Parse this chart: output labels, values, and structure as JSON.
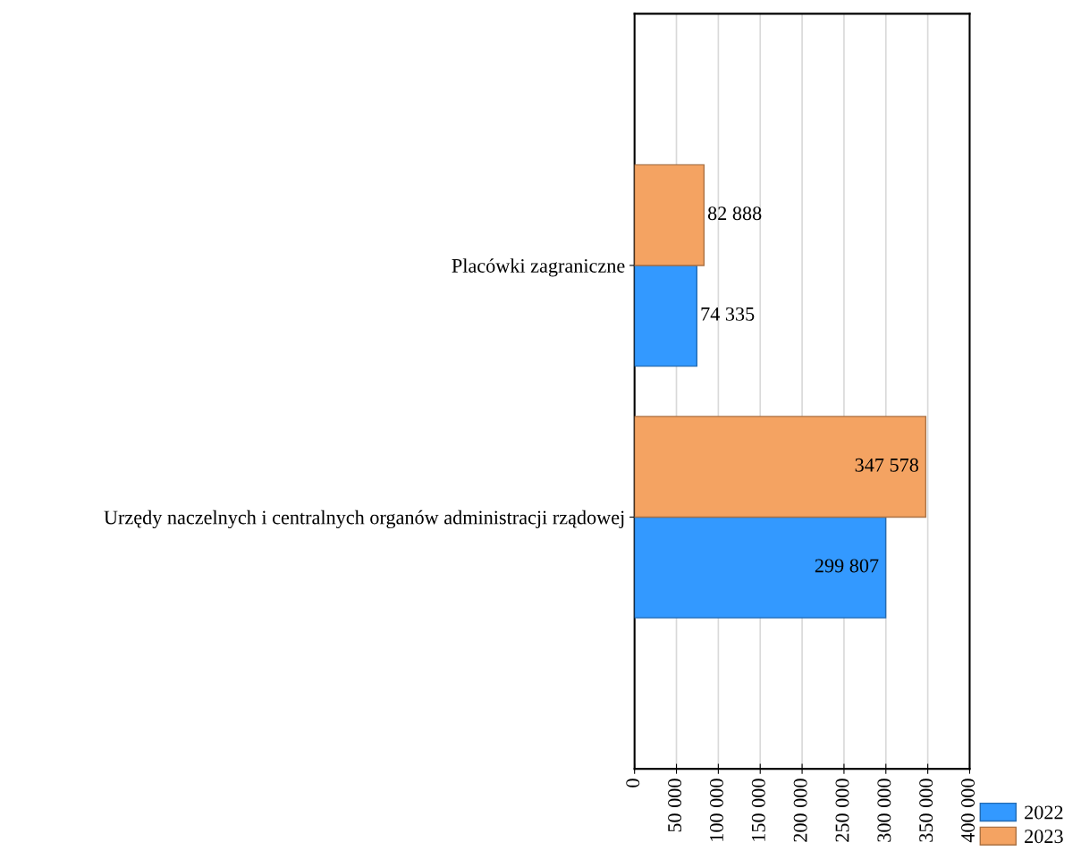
{
  "chart_data": {
    "type": "bar",
    "orientation": "horizontal",
    "categories": [
      "Placówki zagraniczne",
      "Urzędy naczelnych i centralnych organów administracji rządowej"
    ],
    "series": [
      {
        "name": "2022",
        "color": "#3399ff",
        "values": [
          74335,
          299807
        ],
        "value_labels": [
          "74 335",
          "299 807"
        ]
      },
      {
        "name": "2023",
        "color": "#f4a362",
        "values": [
          82888,
          347578
        ],
        "value_labels": [
          "82 888",
          "347 578"
        ]
      }
    ],
    "xlim": [
      0,
      400000
    ],
    "xticks": [
      0,
      {
        "value": 50000,
        "label": "50 000"
      },
      {
        "value": 100000,
        "label": "100 000"
      },
      {
        "value": 150000,
        "label": "150 000"
      },
      {
        "value": 200000,
        "label": "200 000"
      },
      {
        "value": 250000,
        "label": "250 000"
      },
      {
        "value": 300000,
        "label": "300 000"
      },
      {
        "value": 350000,
        "label": "350 000"
      },
      {
        "value": 400000,
        "label": "400 000"
      }
    ],
    "grid": "x",
    "legend": "bottom right"
  }
}
